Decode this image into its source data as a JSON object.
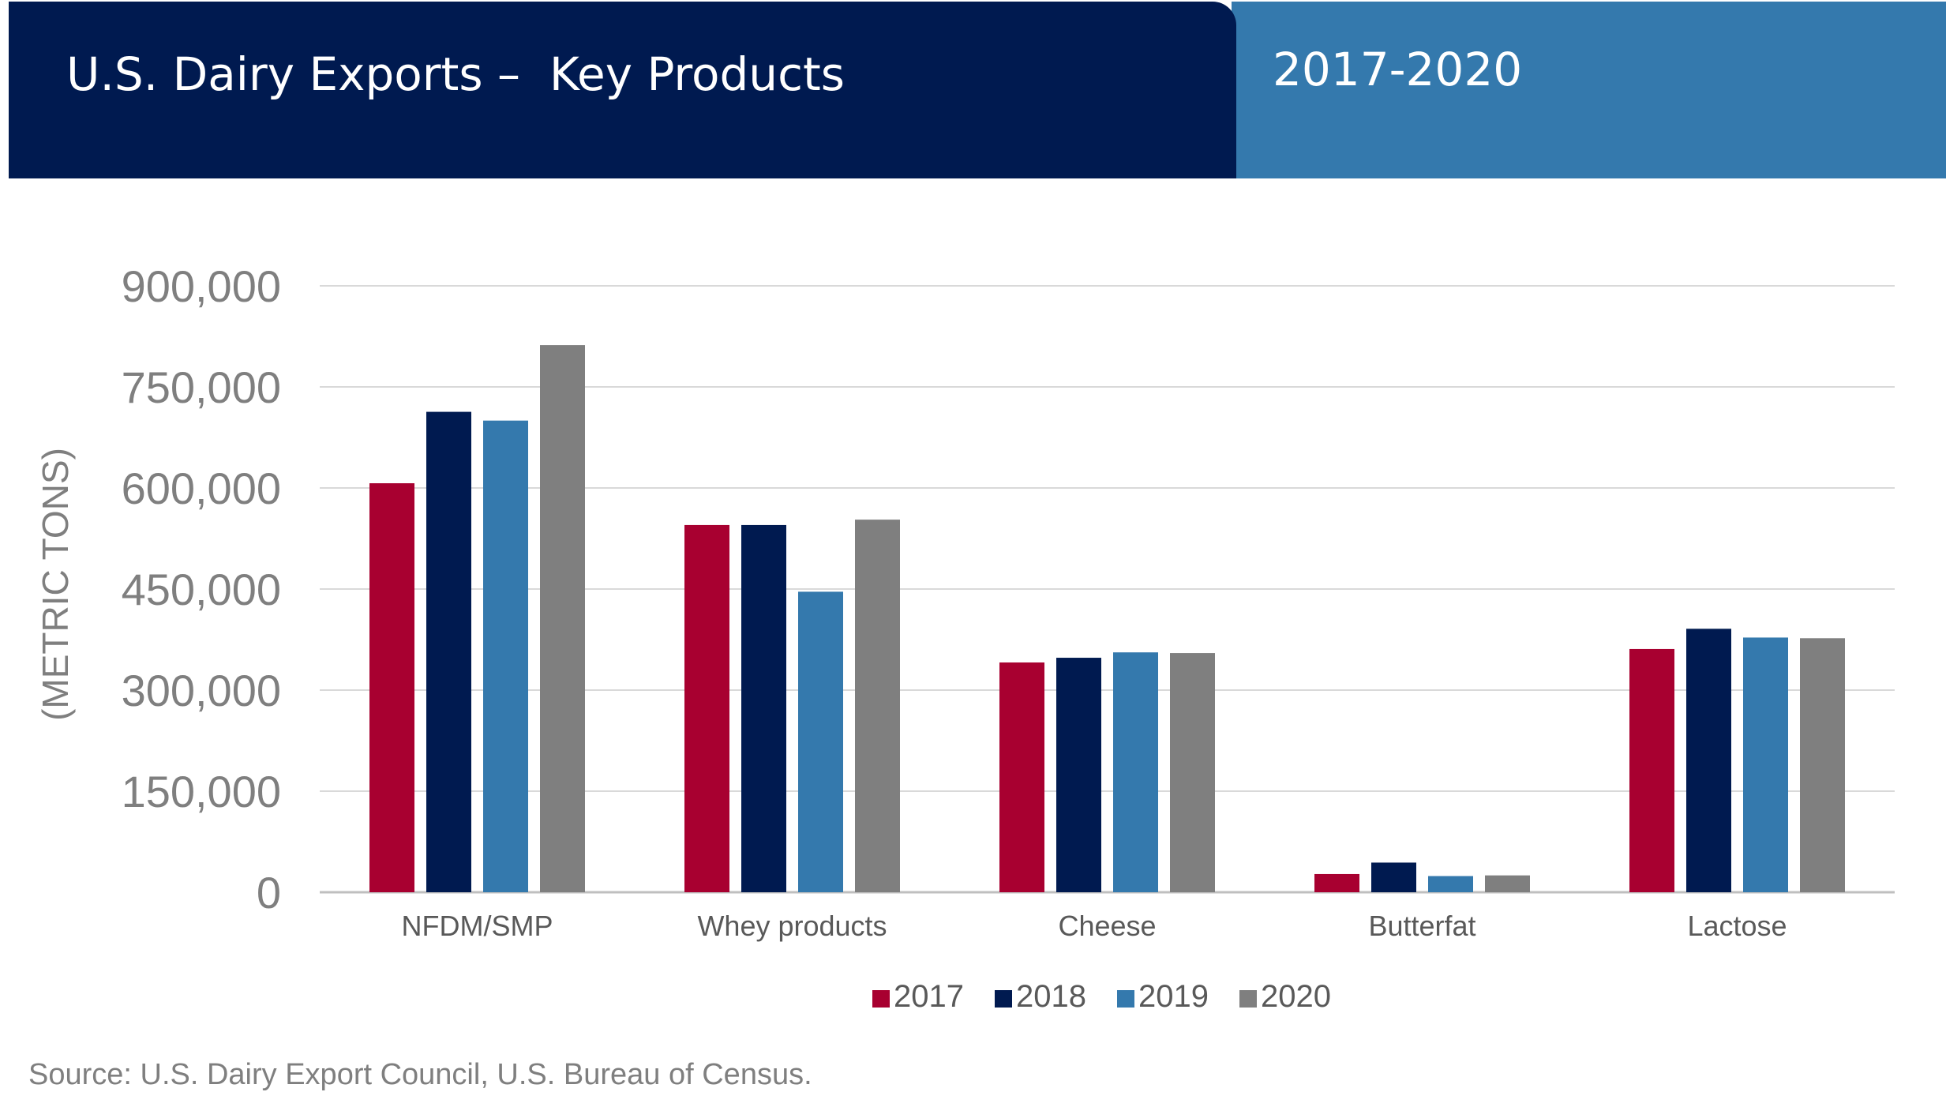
{
  "header": {
    "title": "U.S. Dairy Exports –  Key Products",
    "years": "2017-2020"
  },
  "source": "Source: U.S. Dairy Export Council, U.S. Bureau of Census.",
  "colors": {
    "header_dark": "#001a50",
    "header_light": "#3479ad"
  },
  "chart_data": {
    "type": "bar",
    "title": "",
    "xlabel": "",
    "ylabel": "(METRIC TONS)",
    "ylim": [
      0,
      900000
    ],
    "yticks": [
      0,
      150000,
      300000,
      450000,
      600000,
      750000,
      900000
    ],
    "ytick_labels": [
      "0",
      "150,000",
      "300,000",
      "450,000",
      "600,000",
      "750,000",
      "900,000"
    ],
    "grid": true,
    "legend_position": "bottom",
    "categories": [
      "NFDM/SMP",
      "Whey products",
      "Cheese",
      "Butterfat",
      "Lactose"
    ],
    "series": [
      {
        "name": "2017",
        "color": "#a80030",
        "values": [
          607000,
          545000,
          341000,
          27000,
          361000
        ]
      },
      {
        "name": "2018",
        "color": "#001a50",
        "values": [
          713000,
          545000,
          348000,
          44000,
          391000
        ]
      },
      {
        "name": "2019",
        "color": "#3479ad",
        "values": [
          700000,
          446000,
          356000,
          24000,
          378000
        ]
      },
      {
        "name": "2020",
        "color": "#7f7f7f",
        "values": [
          812000,
          553000,
          355000,
          25000,
          377000
        ]
      }
    ]
  }
}
